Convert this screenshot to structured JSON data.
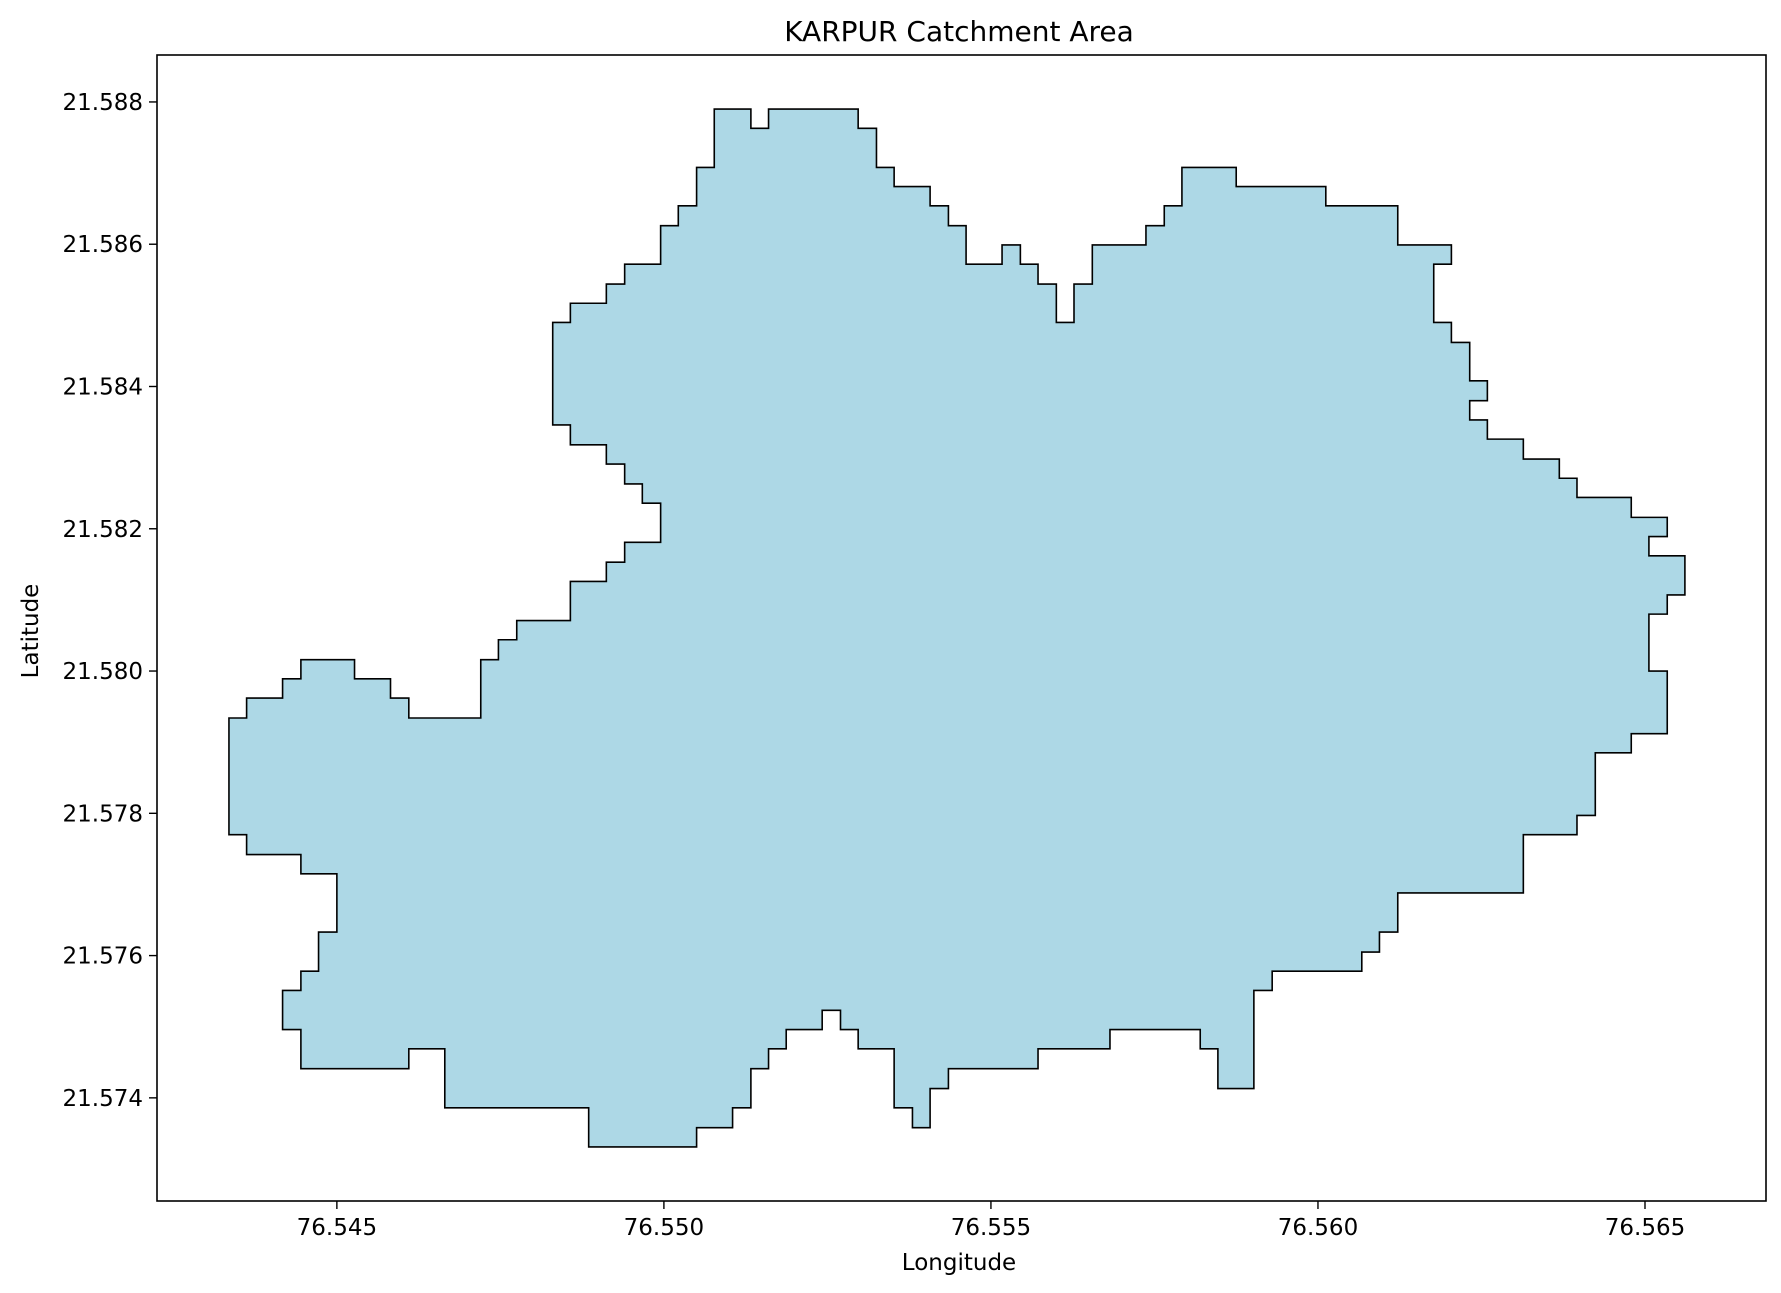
{
  "chart_data": {
    "type": "map",
    "title": "KARPUR Catchment Area",
    "xlabel": "Longitude",
    "ylabel": "Latitude",
    "xlim": [
      76.54225,
      76.56685
    ],
    "ylim": [
      21.57255,
      21.58866
    ],
    "x_ticks": [
      76.545,
      76.55,
      76.555,
      76.56,
      76.565
    ],
    "y_ticks": [
      21.574,
      21.576,
      21.578,
      21.58,
      21.582,
      21.584,
      21.586,
      21.588
    ],
    "x_tick_labels": [
      "76.545",
      "76.550",
      "76.555",
      "76.560",
      "76.565"
    ],
    "y_tick_labels": [
      "21.574",
      "21.576",
      "21.578",
      "21.580",
      "21.582",
      "21.584",
      "21.586",
      "21.588"
    ],
    "grid": false,
    "fill_color": "#add8e6",
    "edge_color": "#000000",
    "boundary": [
      [
        76.55105,
        21.5879
      ],
      [
        76.55133,
        21.5879
      ],
      [
        76.55133,
        21.58763
      ],
      [
        76.5516,
        21.58763
      ],
      [
        76.5516,
        21.5879
      ],
      [
        76.55297,
        21.5879
      ],
      [
        76.55297,
        21.58763
      ],
      [
        76.55325,
        21.58763
      ],
      [
        76.55325,
        21.58708
      ],
      [
        76.55352,
        21.58708
      ],
      [
        76.55352,
        21.58681
      ],
      [
        76.55407,
        21.58681
      ],
      [
        76.55407,
        21.58654
      ],
      [
        76.55435,
        21.58654
      ],
      [
        76.55435,
        21.58626
      ],
      [
        76.55462,
        21.58626
      ],
      [
        76.55462,
        21.58572
      ],
      [
        76.55517,
        21.58572
      ],
      [
        76.55517,
        21.58599
      ],
      [
        76.55545,
        21.58599
      ],
      [
        76.55545,
        21.58572
      ],
      [
        76.55572,
        21.58572
      ],
      [
        76.55572,
        21.58544
      ],
      [
        76.556,
        21.58544
      ],
      [
        76.556,
        21.5849
      ],
      [
        76.55627,
        21.5849
      ],
      [
        76.55627,
        21.58544
      ],
      [
        76.55655,
        21.58544
      ],
      [
        76.55655,
        21.58599
      ],
      [
        76.55737,
        21.58599
      ],
      [
        76.55737,
        21.58626
      ],
      [
        76.55765,
        21.58626
      ],
      [
        76.55765,
        21.58654
      ],
      [
        76.55792,
        21.58654
      ],
      [
        76.55792,
        21.58708
      ],
      [
        76.55875,
        21.58708
      ],
      [
        76.55875,
        21.58681
      ],
      [
        76.56012,
        21.58681
      ],
      [
        76.56012,
        21.58654
      ],
      [
        76.56122,
        21.58654
      ],
      [
        76.56122,
        21.58599
      ],
      [
        76.56204,
        21.58599
      ],
      [
        76.56204,
        21.58572
      ],
      [
        76.56177,
        21.58572
      ],
      [
        76.56177,
        21.5849
      ],
      [
        76.56204,
        21.5849
      ],
      [
        76.56204,
        21.58462
      ],
      [
        76.56232,
        21.58462
      ],
      [
        76.56232,
        21.58408
      ],
      [
        76.56259,
        21.58408
      ],
      [
        76.56259,
        21.5838
      ],
      [
        76.56232,
        21.5838
      ],
      [
        76.56232,
        21.58353
      ],
      [
        76.56259,
        21.58353
      ],
      [
        76.56259,
        21.58326
      ],
      [
        76.56314,
        21.58326
      ],
      [
        76.56314,
        21.58298
      ],
      [
        76.56369,
        21.58298
      ],
      [
        76.56369,
        21.58271
      ],
      [
        76.56396,
        21.58271
      ],
      [
        76.56396,
        21.58244
      ],
      [
        76.56479,
        21.58244
      ],
      [
        76.56479,
        21.58216
      ],
      [
        76.56534,
        21.58216
      ],
      [
        76.56534,
        21.58189
      ],
      [
        76.56506,
        21.58189
      ],
      [
        76.56506,
        21.58162
      ],
      [
        76.56561,
        21.58162
      ],
      [
        76.56561,
        21.58107
      ],
      [
        76.56534,
        21.58107
      ],
      [
        76.56534,
        21.5808
      ],
      [
        76.56506,
        21.5808
      ],
      [
        76.56506,
        21.58
      ],
      [
        76.56534,
        21.58
      ],
      [
        76.56534,
        21.57912
      ],
      [
        76.56479,
        21.57912
      ],
      [
        76.56479,
        21.57885
      ],
      [
        76.56424,
        21.57885
      ],
      [
        76.56424,
        21.57797
      ],
      [
        76.56396,
        21.57797
      ],
      [
        76.56396,
        21.5777
      ],
      [
        76.56314,
        21.5777
      ],
      [
        76.56314,
        21.57688
      ],
      [
        76.56122,
        21.57688
      ],
      [
        76.56122,
        21.57633
      ],
      [
        76.56094,
        21.57633
      ],
      [
        76.56094,
        21.57605
      ],
      [
        76.56067,
        21.57605
      ],
      [
        76.56067,
        21.57578
      ],
      [
        76.5593,
        21.57578
      ],
      [
        76.5593,
        21.57551
      ],
      [
        76.55902,
        21.57551
      ],
      [
        76.55902,
        21.57413
      ],
      [
        76.55847,
        21.57413
      ],
      [
        76.55847,
        21.57469
      ],
      [
        76.5582,
        21.57469
      ],
      [
        76.5582,
        21.57496
      ],
      [
        76.55682,
        21.57496
      ],
      [
        76.55682,
        21.57469
      ],
      [
        76.55572,
        21.57469
      ],
      [
        76.55572,
        21.57441
      ],
      [
        76.55435,
        21.57441
      ],
      [
        76.55435,
        21.57413
      ],
      [
        76.55407,
        21.57413
      ],
      [
        76.55407,
        21.57358
      ],
      [
        76.5538,
        21.57358
      ],
      [
        76.5538,
        21.57386
      ],
      [
        76.55352,
        21.57386
      ],
      [
        76.55352,
        21.57469
      ],
      [
        76.55297,
        21.57469
      ],
      [
        76.55297,
        21.57496
      ],
      [
        76.5527,
        21.57496
      ],
      [
        76.5527,
        21.57523
      ],
      [
        76.55242,
        21.57523
      ],
      [
        76.55242,
        21.57496
      ],
      [
        76.55187,
        21.57496
      ],
      [
        76.55187,
        21.57469
      ],
      [
        76.5516,
        21.57469
      ],
      [
        76.5516,
        21.57441
      ],
      [
        76.55133,
        21.57441
      ],
      [
        76.55133,
        21.57386
      ],
      [
        76.55105,
        21.57386
      ],
      [
        76.55105,
        21.57358
      ],
      [
        76.5505,
        21.57358
      ],
      [
        76.5505,
        21.57331
      ],
      [
        76.54885,
        21.57331
      ],
      [
        76.54885,
        21.57386
      ],
      [
        76.54665,
        21.57386
      ],
      [
        76.54665,
        21.57469
      ],
      [
        76.5461,
        21.57469
      ],
      [
        76.5461,
        21.57441
      ],
      [
        76.54445,
        21.57441
      ],
      [
        76.54445,
        21.57496
      ],
      [
        76.54417,
        21.57496
      ],
      [
        76.54417,
        21.57551
      ],
      [
        76.54445,
        21.57551
      ],
      [
        76.54445,
        21.57578
      ],
      [
        76.54472,
        21.57578
      ],
      [
        76.54472,
        21.57633
      ],
      [
        76.545,
        21.57633
      ],
      [
        76.545,
        21.57715
      ],
      [
        76.54445,
        21.57715
      ],
      [
        76.54445,
        21.57742
      ],
      [
        76.54362,
        21.57742
      ],
      [
        76.54362,
        21.5777
      ],
      [
        76.54335,
        21.5777
      ],
      [
        76.54335,
        21.57934
      ],
      [
        76.54362,
        21.57934
      ],
      [
        76.54362,
        21.57962
      ],
      [
        76.54417,
        21.57962
      ],
      [
        76.54417,
        21.57989
      ],
      [
        76.54445,
        21.57989
      ],
      [
        76.54445,
        21.58016
      ],
      [
        76.54527,
        21.58016
      ],
      [
        76.54527,
        21.57989
      ],
      [
        76.54582,
        21.57989
      ],
      [
        76.54582,
        21.57962
      ],
      [
        76.5461,
        21.57962
      ],
      [
        76.5461,
        21.57934
      ],
      [
        76.5472,
        21.57934
      ],
      [
        76.5472,
        21.58016
      ],
      [
        76.54747,
        21.58016
      ],
      [
        76.54747,
        21.58044
      ],
      [
        76.54775,
        21.58044
      ],
      [
        76.54775,
        21.58071
      ],
      [
        76.54857,
        21.58071
      ],
      [
        76.54857,
        21.58126
      ],
      [
        76.54912,
        21.58126
      ],
      [
        76.54912,
        21.58153
      ],
      [
        76.5494,
        21.58153
      ],
      [
        76.5494,
        21.58181
      ],
      [
        76.54995,
        21.58181
      ],
      [
        76.54995,
        21.58236
      ],
      [
        76.54967,
        21.58236
      ],
      [
        76.54967,
        21.58263
      ],
      [
        76.5494,
        21.58263
      ],
      [
        76.5494,
        21.58291
      ],
      [
        76.54912,
        21.58291
      ],
      [
        76.54912,
        21.58318
      ],
      [
        76.54857,
        21.58318
      ],
      [
        76.54857,
        21.58346
      ],
      [
        76.5483,
        21.58346
      ],
      [
        76.5483,
        21.5849
      ],
      [
        76.54857,
        21.5849
      ],
      [
        76.54857,
        21.58517
      ],
      [
        76.54912,
        21.58517
      ],
      [
        76.54912,
        21.58544
      ],
      [
        76.5494,
        21.58544
      ],
      [
        76.5494,
        21.58572
      ],
      [
        76.54995,
        21.58572
      ],
      [
        76.54995,
        21.58626
      ],
      [
        76.55022,
        21.58626
      ],
      [
        76.55022,
        21.58654
      ],
      [
        76.5505,
        21.58654
      ],
      [
        76.5505,
        21.58708
      ],
      [
        76.55077,
        21.58708
      ],
      [
        76.55077,
        21.5879
      ],
      [
        76.55105,
        21.5879
      ]
    ]
  }
}
